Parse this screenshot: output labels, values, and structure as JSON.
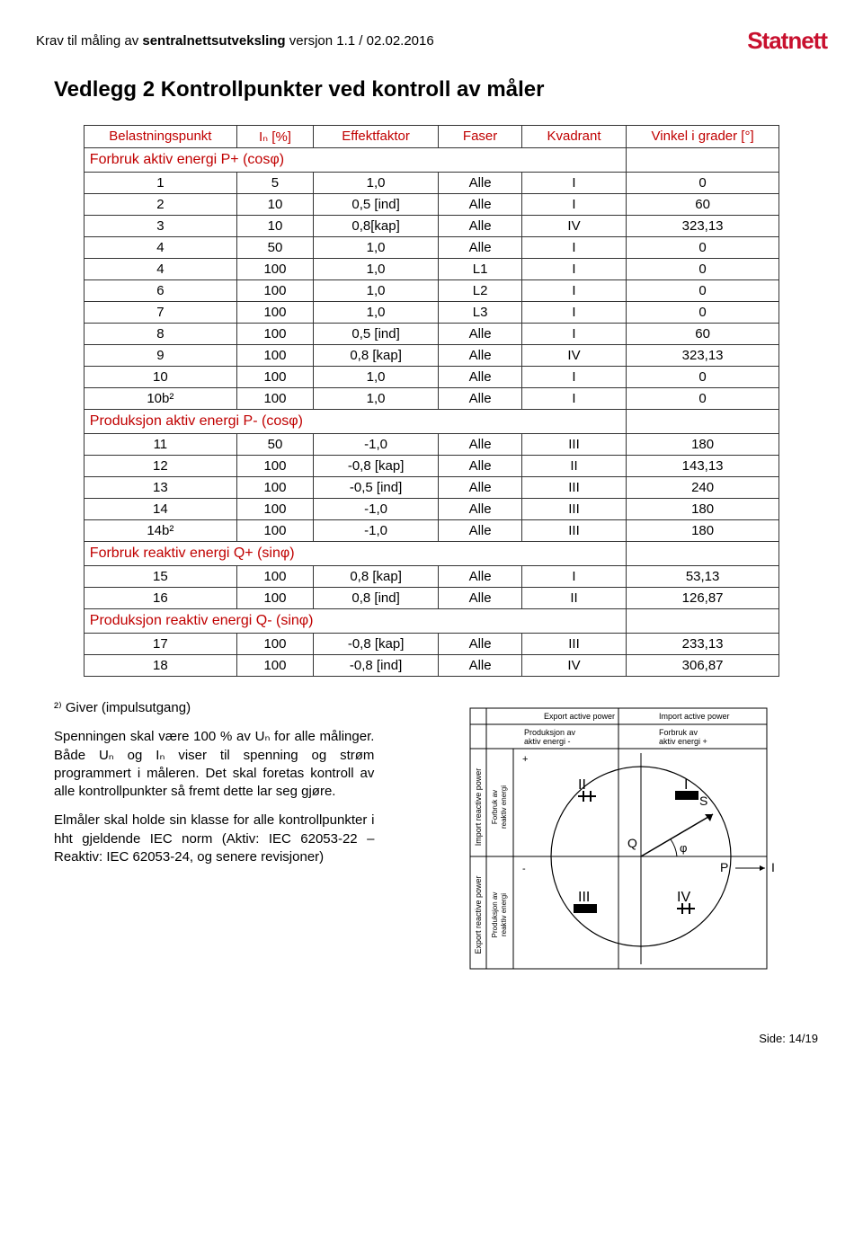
{
  "header": {
    "doc_title_prefix": "Krav til måling av ",
    "doc_title_bold": "sentralnettsutveksling",
    "doc_title_suffix": " versjon 1.1 / 02.02.2016",
    "logo": "Statnett"
  },
  "section_heading": "Vedlegg 2  Kontrollpunkter ved kontroll av måler",
  "table": {
    "headers": {
      "bp": "Belastningspunkt",
      "in": "Iₙ [%]",
      "ef": "Effektfaktor",
      "fa": "Faser",
      "kv": "Kvadrant",
      "vi": "Vinkel i grader [°]"
    },
    "sections": [
      {
        "label": "Forbruk aktiv energi P+ (cosφ)",
        "rows": [
          {
            "bp": "1",
            "in": "5",
            "ef": "1,0",
            "fa": "Alle",
            "kv": "I",
            "vi": "0"
          },
          {
            "bp": "2",
            "in": "10",
            "ef": "0,5 [ind]",
            "fa": "Alle",
            "kv": "I",
            "vi": "60"
          },
          {
            "bp": "3",
            "in": "10",
            "ef": "0,8[kap]",
            "fa": "Alle",
            "kv": "IV",
            "vi": "323,13"
          },
          {
            "bp": "4",
            "in": "50",
            "ef": "1,0",
            "fa": "Alle",
            "kv": "I",
            "vi": "0"
          },
          {
            "bp": "4",
            "in": "100",
            "ef": "1,0",
            "fa": "L1",
            "kv": "I",
            "vi": "0"
          },
          {
            "bp": "6",
            "in": "100",
            "ef": "1,0",
            "fa": "L2",
            "kv": "I",
            "vi": "0"
          },
          {
            "bp": "7",
            "in": "100",
            "ef": "1,0",
            "fa": "L3",
            "kv": "I",
            "vi": "0"
          },
          {
            "bp": "8",
            "in": "100",
            "ef": "0,5 [ind]",
            "fa": "Alle",
            "kv": "I",
            "vi": "60"
          },
          {
            "bp": "9",
            "in": "100",
            "ef": "0,8 [kap]",
            "fa": "Alle",
            "kv": "IV",
            "vi": "323,13"
          },
          {
            "bp": "10",
            "in": "100",
            "ef": "1,0",
            "fa": "Alle",
            "kv": "I",
            "vi": "0"
          },
          {
            "bp": "10b²",
            "in": "100",
            "ef": "1,0",
            "fa": "Alle",
            "kv": "I",
            "vi": "0"
          }
        ]
      },
      {
        "label": "Produksjon aktiv energi P- (cosφ)",
        "rows": [
          {
            "bp": "11",
            "in": "50",
            "ef": "-1,0",
            "fa": "Alle",
            "kv": "III",
            "vi": "180"
          },
          {
            "bp": "12",
            "in": "100",
            "ef": "-0,8 [kap]",
            "fa": "Alle",
            "kv": "II",
            "vi": "143,13"
          },
          {
            "bp": "13",
            "in": "100",
            "ef": "-0,5 [ind]",
            "fa": "Alle",
            "kv": "III",
            "vi": "240"
          },
          {
            "bp": "14",
            "in": "100",
            "ef": "-1,0",
            "fa": "Alle",
            "kv": "III",
            "vi": "180"
          },
          {
            "bp": "14b²",
            "in": "100",
            "ef": "-1,0",
            "fa": "Alle",
            "kv": "III",
            "vi": "180"
          }
        ]
      },
      {
        "label": "Forbruk reaktiv energi Q+ (sinφ)",
        "rows": [
          {
            "bp": "15",
            "in": "100",
            "ef": "0,8 [kap]",
            "fa": "Alle",
            "kv": "I",
            "vi": "53,13"
          },
          {
            "bp": "16",
            "in": "100",
            "ef": "0,8 [ind]",
            "fa": "Alle",
            "kv": "II",
            "vi": "126,87"
          }
        ]
      },
      {
        "label": "Produksjon reaktiv energi Q- (sinφ)",
        "rows": [
          {
            "bp": "17",
            "in": "100",
            "ef": "-0,8 [kap]",
            "fa": "Alle",
            "kv": "III",
            "vi": "233,13"
          },
          {
            "bp": "18",
            "in": "100",
            "ef": "-0,8 [ind]",
            "fa": "Alle",
            "kv": "IV",
            "vi": "306,87"
          }
        ]
      }
    ]
  },
  "body_text": {
    "note": "²⁾ Giver (impulsutgang)",
    "p1": "Spenningen skal være 100 % av Uₙ for alle målinger. Både Uₙ og Iₙ viser til spenning og strøm programmert i måleren. Det skal foretas kontroll av alle kontrollpunkter så fremt dette lar seg gjøre.",
    "p2": "Elmåler skal holde sin klasse for alle kontrollpunkter i hht gjeldende IEC norm (Aktiv: IEC 62053-22 – Reaktiv: IEC 62053-24, og senere revisjoner)"
  },
  "diagram": {
    "top_left": "Export active power",
    "top_right": "Import active power",
    "sub_left_1": "Produksjon av",
    "sub_left_2": "aktiv energi    -",
    "sub_right_1": "Forbruk av",
    "sub_right_2": "aktiv energi    +",
    "left_upper": "Import reactive power",
    "left_lower": "Export reactive power",
    "inner_left_upper_1": "Forbruk av",
    "inner_left_upper_2": "reaktiv energi",
    "inner_left_upper_sign": "+",
    "inner_left_lower_1": "Produksjon av",
    "inner_left_lower_2": "reaktiv energi",
    "inner_left_lower_sign": "-",
    "q1": "I",
    "q2": "II",
    "q3": "III",
    "q4": "IV",
    "S": "S",
    "phi": "φ",
    "P": "P",
    "I": "I",
    "Q": "Q"
  },
  "footer": "Side: 14/19"
}
